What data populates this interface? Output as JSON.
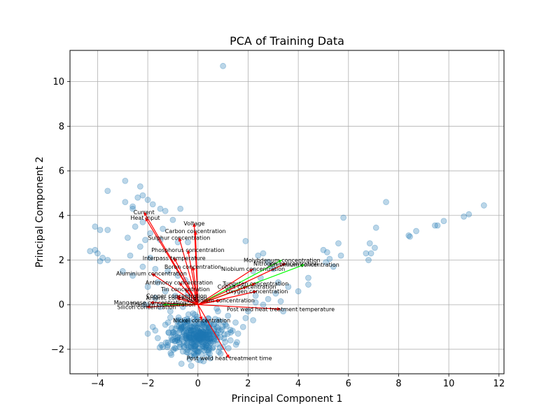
{
  "chart_data": {
    "type": "scatter",
    "title": "PCA of Training Data",
    "xlabel": "Principal Component 1",
    "ylabel": "Principal Component 2",
    "xlim": [
      -5.1,
      12.2
    ],
    "ylim": [
      -3.1,
      11.4
    ],
    "xticks": [
      -4,
      -2,
      0,
      2,
      4,
      6,
      8,
      10,
      12
    ],
    "yticks": [
      -2,
      0,
      2,
      4,
      6,
      8,
      10
    ],
    "grid": true,
    "point_color": "#1f77b4",
    "arrow_color_default": "#ff0000",
    "arrow_color_highlight": "#00ff00",
    "points": [
      [
        1.0,
        10.7
      ],
      [
        -3.6,
        5.1
      ],
      [
        -2.9,
        5.55
      ],
      [
        -2.3,
        5.3
      ],
      [
        -2.9,
        4.6
      ],
      [
        -2.6,
        4.4
      ],
      [
        -2.6,
        4.3
      ],
      [
        -2.4,
        4.8
      ],
      [
        -2.2,
        4.9
      ],
      [
        -2.0,
        4.7
      ],
      [
        -1.8,
        4.5
      ],
      [
        -1.5,
        4.3
      ],
      [
        -1.3,
        4.2
      ],
      [
        -0.7,
        4.3
      ],
      [
        -1.0,
        3.8
      ],
      [
        -2.2,
        3.7
      ],
      [
        -2.5,
        3.5
      ],
      [
        -1.4,
        3.4
      ],
      [
        -1.9,
        3.2
      ],
      [
        -4.1,
        3.5
      ],
      [
        -3.9,
        3.35
      ],
      [
        -3.6,
        3.35
      ],
      [
        -2.8,
        3.0
      ],
      [
        -2.1,
        2.9
      ],
      [
        -1.5,
        2.9
      ],
      [
        -0.8,
        2.8
      ],
      [
        -0.4,
        2.8
      ],
      [
        -4.3,
        2.4
      ],
      [
        -4.1,
        2.45
      ],
      [
        -4.0,
        2.3
      ],
      [
        -3.8,
        2.1
      ],
      [
        -3.6,
        2.0
      ],
      [
        -3.9,
        1.95
      ],
      [
        -2.7,
        2.2
      ],
      [
        -2.3,
        2.6
      ],
      [
        -1.9,
        2.1
      ],
      [
        -3.0,
        1.5
      ],
      [
        -2.6,
        1.3
      ],
      [
        -2.2,
        1.7
      ],
      [
        -1.7,
        1.6
      ],
      [
        -1.2,
        1.5
      ],
      [
        -0.8,
        1.3
      ],
      [
        -0.5,
        1.1
      ],
      [
        -1.6,
        1.0
      ],
      [
        -2.0,
        0.8
      ],
      [
        -1.3,
        0.6
      ],
      [
        -0.9,
        0.4
      ],
      [
        -0.4,
        0.5
      ],
      [
        -1.7,
        0.3
      ],
      [
        -2.1,
        0.0
      ],
      [
        -1.5,
        -0.1
      ],
      [
        -0.6,
        -0.1
      ],
      [
        -1.1,
        -0.3
      ],
      [
        1.9,
        2.85
      ],
      [
        2.4,
        2.2
      ],
      [
        2.6,
        2.3
      ],
      [
        2.8,
        1.9
      ],
      [
        3.0,
        1.6
      ],
      [
        2.2,
        1.5
      ],
      [
        2.5,
        1.2
      ],
      [
        3.2,
        1.0
      ],
      [
        3.6,
        0.8
      ],
      [
        4.0,
        0.6
      ],
      [
        4.4,
        1.2
      ],
      [
        4.4,
        0.9
      ],
      [
        3.1,
        0.5
      ],
      [
        2.8,
        0.25
      ],
      [
        2.3,
        0.4
      ],
      [
        2.3,
        0.1
      ],
      [
        3.3,
        0.15
      ],
      [
        3.4,
        -0.3
      ],
      [
        2.6,
        0.0
      ],
      [
        5.0,
        2.45
      ],
      [
        5.15,
        2.35
      ],
      [
        5.1,
        1.9
      ],
      [
        5.25,
        2.05
      ],
      [
        5.4,
        1.7
      ],
      [
        5.6,
        2.75
      ],
      [
        5.7,
        2.2
      ],
      [
        5.8,
        3.9
      ],
      [
        6.7,
        2.3
      ],
      [
        6.8,
        2.0
      ],
      [
        6.85,
        2.75
      ],
      [
        6.9,
        2.3
      ],
      [
        7.05,
        2.55
      ],
      [
        7.1,
        3.45
      ],
      [
        7.5,
        4.6
      ],
      [
        8.4,
        3.1
      ],
      [
        8.45,
        3.05
      ],
      [
        8.7,
        3.3
      ],
      [
        9.45,
        3.55
      ],
      [
        9.55,
        3.55
      ],
      [
        9.8,
        3.75
      ],
      [
        10.6,
        3.95
      ],
      [
        10.8,
        4.05
      ],
      [
        11.4,
        4.45
      ],
      [
        -0.8,
        -0.7
      ],
      [
        -1.3,
        -0.9
      ],
      [
        -1.8,
        -1.0
      ],
      [
        -2.0,
        -1.3
      ],
      [
        -1.6,
        -1.5
      ],
      [
        -1.2,
        -1.7
      ],
      [
        -1.4,
        -1.9
      ],
      [
        -0.9,
        -1.3
      ],
      [
        0.8,
        -0.3
      ],
      [
        1.2,
        -0.5
      ],
      [
        1.5,
        -0.8
      ],
      [
        1.8,
        -1.0
      ],
      [
        2.2,
        -0.7
      ],
      [
        1.6,
        -1.3
      ],
      [
        1.3,
        -1.6
      ],
      [
        1.0,
        -1.9
      ],
      [
        0.9,
        -2.2
      ],
      [
        0.5,
        -2.4
      ],
      [
        0.1,
        -2.5
      ],
      [
        -0.3,
        -2.3
      ],
      [
        -0.6,
        -2.1
      ],
      [
        1.9,
        -0.6
      ],
      [
        2.0,
        -0.3
      ],
      [
        1.1,
        -0.9
      ]
    ],
    "cluster": {
      "cx": 0.0,
      "cy": -1.4,
      "sx": 0.55,
      "sy": 0.45,
      "n": 320
    },
    "loadings": [
      {
        "label": "Current",
        "dx": -2.15,
        "dy": 4.15,
        "highlight": false
      },
      {
        "label": "Heat input",
        "dx": -2.1,
        "dy": 3.9,
        "highlight": false
      },
      {
        "label": "Voltage",
        "dx": -0.15,
        "dy": 3.65,
        "highlight": false
      },
      {
        "label": "Carbon concentration",
        "dx": -0.1,
        "dy": 3.3,
        "highlight": false
      },
      {
        "label": "Sulphur concentration",
        "dx": -0.75,
        "dy": 3.0,
        "highlight": false
      },
      {
        "label": "Phosphorus concentration",
        "dx": -0.4,
        "dy": 2.45,
        "highlight": false
      },
      {
        "label": "Interpass temperature",
        "dx": -0.95,
        "dy": 2.1,
        "highlight": false
      },
      {
        "label": "Boron concentration",
        "dx": -0.2,
        "dy": 1.7,
        "highlight": false
      },
      {
        "label": "Aluminium concentration",
        "dx": -1.85,
        "dy": 1.4,
        "highlight": false
      },
      {
        "label": "Molybdenum concentration",
        "dx": 3.35,
        "dy": 2.0,
        "highlight": true
      },
      {
        "label": "Nitrogen concentration",
        "dx": 3.5,
        "dy": 1.85,
        "highlight": false
      },
      {
        "label": "Chromium concentration",
        "dx": 4.25,
        "dy": 1.8,
        "highlight": true
      },
      {
        "label": "Niobium concentration",
        "dx": 2.2,
        "dy": 1.6,
        "highlight": false
      },
      {
        "label": "Antimony concentration",
        "dx": -0.75,
        "dy": 1.0,
        "highlight": false
      },
      {
        "label": "Tungsten concentration",
        "dx": 2.3,
        "dy": 0.95,
        "highlight": false
      },
      {
        "label": "Cobalt concentration",
        "dx": 1.95,
        "dy": 0.8,
        "highlight": false
      },
      {
        "label": "Tin concentration",
        "dx": -0.5,
        "dy": 0.7,
        "highlight": false
      },
      {
        "label": "Oxygen concentration",
        "dx": 2.35,
        "dy": 0.6,
        "highlight": false
      },
      {
        "label": "Copper concentration",
        "dx": -0.85,
        "dy": 0.4,
        "highlight": false
      },
      {
        "label": "Arsenic concentration",
        "dx": -0.85,
        "dy": 0.3,
        "highlight": false
      },
      {
        "label": "Vanadium concentration",
        "dx": 0.9,
        "dy": 0.2,
        "highlight": false
      },
      {
        "label": "Manganese concentration",
        "dx": -1.9,
        "dy": 0.1,
        "highlight": false
      },
      {
        "label": "Titanium concentration",
        "dx": -1.4,
        "dy": 0.0,
        "highlight": true
      },
      {
        "label": "Silicon concentration",
        "dx": -2.05,
        "dy": -0.1,
        "highlight": false
      },
      {
        "label": "Post weld heat treatment temperature",
        "dx": 3.3,
        "dy": -0.2,
        "highlight": false
      },
      {
        "label": "Nickel concentration",
        "dx": 0.15,
        "dy": -0.7,
        "highlight": false
      },
      {
        "label": "Post weld heat treatment time",
        "dx": 1.25,
        "dy": -2.4,
        "highlight": false
      }
    ]
  }
}
